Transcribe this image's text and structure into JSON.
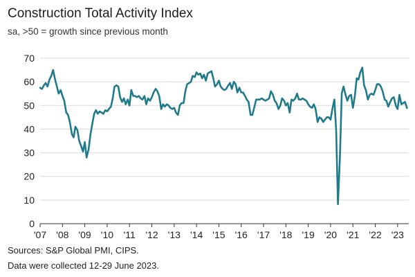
{
  "header": {
    "title": "Construction Total Activity Index",
    "subtitle": "sa, >50 = growth since previous month"
  },
  "footer": {
    "sources": "Sources: S&P Global PMI, CIPS.",
    "note": "Data were collected 12-29 June 2023."
  },
  "colors": {
    "line": "#1f7a8c",
    "grid": "#d9d9d9",
    "axis": "#333333"
  },
  "chart_data": {
    "type": "line",
    "title": "Construction Total Activity Index",
    "subtitle": "sa, >50 = growth since previous month",
    "xlabel": "",
    "ylabel": "",
    "ylim": [
      0,
      70
    ],
    "xlim": [
      2007.0,
      2023.5
    ],
    "grid": true,
    "yticks": [
      0,
      10,
      20,
      30,
      40,
      50,
      60,
      70
    ],
    "xticks": [
      {
        "label": "'07",
        "x": 2007
      },
      {
        "label": "'08",
        "x": 2008
      },
      {
        "label": "'09",
        "x": 2009
      },
      {
        "label": "'10",
        "x": 2010
      },
      {
        "label": "'11",
        "x": 2011
      },
      {
        "label": "'12",
        "x": 2012
      },
      {
        "label": "'13",
        "x": 2013
      },
      {
        "label": "'14",
        "x": 2014
      },
      {
        "label": "'15",
        "x": 2015
      },
      {
        "label": "'16",
        "x": 2016
      },
      {
        "label": "'17",
        "x": 2017
      },
      {
        "label": "'18",
        "x": 2018
      },
      {
        "label": "'19",
        "x": 2019
      },
      {
        "label": "'20",
        "x": 2020
      },
      {
        "label": "'21",
        "x": 2021
      },
      {
        "label": "'22",
        "x": 2022
      },
      {
        "label": "'23",
        "x": 2023
      }
    ],
    "series": [
      {
        "name": "Construction Total Activity Index",
        "x": [
          2007.0,
          2007.08,
          2007.17,
          2007.25,
          2007.33,
          2007.42,
          2007.5,
          2007.58,
          2007.67,
          2007.75,
          2007.83,
          2007.92,
          2008.0,
          2008.08,
          2008.17,
          2008.25,
          2008.33,
          2008.42,
          2008.5,
          2008.58,
          2008.67,
          2008.75,
          2008.83,
          2008.92,
          2009.0,
          2009.08,
          2009.17,
          2009.25,
          2009.33,
          2009.42,
          2009.5,
          2009.58,
          2009.67,
          2009.75,
          2009.83,
          2009.92,
          2010.0,
          2010.08,
          2010.17,
          2010.25,
          2010.33,
          2010.42,
          2010.5,
          2010.58,
          2010.67,
          2010.75,
          2010.83,
          2010.92,
          2011.0,
          2011.08,
          2011.17,
          2011.25,
          2011.33,
          2011.42,
          2011.5,
          2011.58,
          2011.67,
          2011.75,
          2011.83,
          2011.92,
          2012.0,
          2012.08,
          2012.17,
          2012.25,
          2012.33,
          2012.42,
          2012.5,
          2012.58,
          2012.67,
          2012.75,
          2012.83,
          2012.92,
          2013.0,
          2013.08,
          2013.17,
          2013.25,
          2013.33,
          2013.42,
          2013.5,
          2013.58,
          2013.67,
          2013.75,
          2013.83,
          2013.92,
          2014.0,
          2014.08,
          2014.17,
          2014.25,
          2014.33,
          2014.42,
          2014.5,
          2014.58,
          2014.67,
          2014.75,
          2014.83,
          2014.92,
          2015.0,
          2015.08,
          2015.17,
          2015.25,
          2015.33,
          2015.42,
          2015.5,
          2015.58,
          2015.67,
          2015.75,
          2015.83,
          2015.92,
          2016.0,
          2016.08,
          2016.17,
          2016.25,
          2016.33,
          2016.42,
          2016.5,
          2016.58,
          2016.67,
          2016.75,
          2016.83,
          2016.92,
          2017.0,
          2017.08,
          2017.17,
          2017.25,
          2017.33,
          2017.42,
          2017.5,
          2017.58,
          2017.67,
          2017.75,
          2017.83,
          2017.92,
          2018.0,
          2018.08,
          2018.17,
          2018.25,
          2018.33,
          2018.42,
          2018.5,
          2018.58,
          2018.67,
          2018.75,
          2018.83,
          2018.92,
          2019.0,
          2019.08,
          2019.17,
          2019.25,
          2019.33,
          2019.42,
          2019.5,
          2019.58,
          2019.67,
          2019.75,
          2019.83,
          2019.92,
          2020.0,
          2020.08,
          2020.17,
          2020.25,
          2020.33,
          2020.42,
          2020.5,
          2020.58,
          2020.67,
          2020.75,
          2020.83,
          2020.92,
          2021.0,
          2021.08,
          2021.17,
          2021.25,
          2021.33,
          2021.42,
          2021.5,
          2021.58,
          2021.67,
          2021.75,
          2021.83,
          2021.92,
          2022.0,
          2022.08,
          2022.17,
          2022.25,
          2022.33,
          2022.42,
          2022.5,
          2022.58,
          2022.67,
          2022.75,
          2022.83,
          2022.92,
          2023.0,
          2023.08,
          2023.17,
          2023.25,
          2023.33,
          2023.42
        ],
        "values": [
          57.5,
          57.0,
          58.5,
          59.5,
          58.0,
          61.0,
          62.5,
          65.0,
          61.0,
          58.0,
          55.0,
          56.5,
          54.0,
          52.0,
          47.0,
          46.0,
          43.0,
          38.0,
          36.5,
          41.0,
          39.5,
          35.0,
          33.0,
          30.5,
          34.5,
          28.0,
          31.5,
          37.5,
          42.0,
          46.5,
          48.0,
          46.5,
          47.5,
          47.0,
          46.5,
          48.0,
          47.5,
          48.5,
          49.5,
          53.0,
          58.0,
          58.5,
          58.0,
          53.5,
          51.5,
          53.0,
          50.5,
          52.5,
          50.0,
          56.5,
          54.0,
          54.0,
          53.5,
          54.0,
          53.0,
          52.5,
          54.0,
          50.5,
          53.0,
          52.0,
          53.5,
          55.5,
          57.0,
          56.0,
          54.0,
          48.5,
          50.5,
          49.5,
          50.5,
          50.0,
          49.0,
          48.5,
          49.0,
          47.0,
          46.0,
          50.0,
          51.0,
          51.0,
          56.0,
          59.0,
          59.5,
          60.0,
          62.5,
          62.0,
          64.0,
          63.0,
          63.5,
          61.5,
          63.0,
          60.5,
          63.5,
          64.0,
          64.5,
          61.5,
          58.0,
          59.0,
          60.5,
          58.0,
          57.0,
          56.5,
          57.0,
          58.5,
          59.5,
          57.0,
          60.0,
          59.0,
          55.5,
          57.5,
          55.5,
          55.5,
          54.0,
          52.5,
          51.5,
          46.0,
          46.0,
          49.0,
          52.5,
          52.5,
          52.5,
          53.0,
          52.5,
          52.0,
          52.5,
          53.0,
          56.0,
          54.5,
          52.0,
          51.0,
          48.5,
          50.0,
          53.0,
          52.0,
          50.0,
          51.0,
          47.0,
          52.5,
          52.0,
          53.0,
          55.0,
          52.5,
          52.5,
          53.0,
          52.5,
          52.0,
          50.5,
          49.5,
          49.0,
          50.5,
          48.5,
          43.0,
          45.0,
          44.5,
          43.0,
          44.0,
          45.0,
          45.0,
          44.0,
          48.5,
          52.5,
          39.5,
          8.2,
          28.5,
          55.0,
          58.0,
          54.5,
          52.0,
          54.0,
          54.5,
          49.0,
          53.5,
          61.5,
          61.0,
          64.0,
          66.0,
          58.5,
          56.5,
          52.5,
          54.5,
          55.0,
          54.5,
          56.5,
          59.0,
          59.0,
          58.0,
          56.0,
          52.5,
          52.0,
          49.5,
          51.5,
          53.0,
          53.5,
          50.0,
          48.5,
          54.5,
          50.5,
          51.0,
          51.5,
          48.9
        ]
      }
    ]
  }
}
